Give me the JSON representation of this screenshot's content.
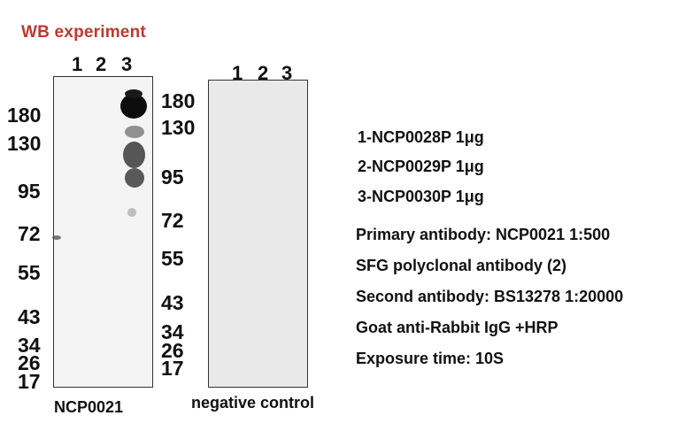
{
  "title": "WB  experiment",
  "panels": [
    {
      "name": "NCP0021",
      "lanes": [
        "1",
        "2",
        "3"
      ],
      "markers": [
        "180",
        "130",
        "95",
        "72",
        "55",
        "43",
        "34",
        "26",
        "17"
      ]
    },
    {
      "name": "negative control",
      "lanes": [
        "1",
        "2",
        "3"
      ],
      "markers": [
        "180",
        "130",
        "95",
        "72",
        "55",
        "43",
        "34",
        "26",
        "17"
      ]
    }
  ],
  "samples": [
    "1-NCP0028P  1μg",
    "2-NCP0029P  1μg",
    "3-NCP0030P  1μg"
  ],
  "conditions": [
    "Primary antibody:  NCP0021  1:500",
    "SFG polyclonal antibody  (2)",
    "Second antibody:  BS13278  1:20000",
    "Goat anti-Rabbit  IgG +HRP",
    "Exposure time:  10S"
  ],
  "colors": {
    "title": "#c0392b",
    "band": "#111111"
  }
}
